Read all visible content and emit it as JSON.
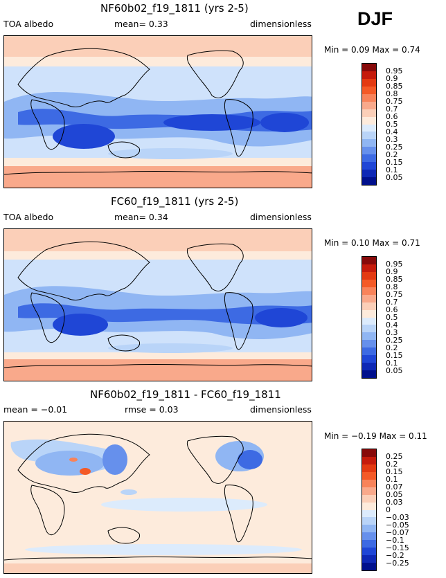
{
  "season": "DJF",
  "panels": [
    {
      "title": "NF60b02_f19_1811 (yrs 2-5)",
      "left_label": "TOA albedo",
      "mean_text": "mean=   0.33",
      "units": "dimensionless",
      "minmax": "Min =    0.09  Max =    0.74",
      "colorbar": {
        "labels": [
          "0.95",
          "0.9",
          "0.85",
          "0.8",
          "0.75",
          "0.7",
          "0.6",
          "0.5",
          "0.4",
          "0.3",
          "0.25",
          "0.2",
          "0.15",
          "0.1",
          "0.05"
        ],
        "colors": [
          "#870a0a",
          "#c51b0c",
          "#e33a12",
          "#f45a27",
          "#f8835a",
          "#f9a98b",
          "#fbcfb8",
          "#fdebdc",
          "#dcebfc",
          "#b9d4f8",
          "#90b6f3",
          "#6690ec",
          "#3d6ae3",
          "#1f46d6",
          "#0e28b5",
          "#00108c"
        ]
      }
    },
    {
      "title": "FC60_f19_1811 (yrs 2-5)",
      "left_label": "TOA albedo",
      "mean_text": "mean=   0.34",
      "units": "dimensionless",
      "minmax": "Min =    0.10  Max =    0.71",
      "colorbar": {
        "labels": [
          "0.95",
          "0.9",
          "0.85",
          "0.8",
          "0.75",
          "0.7",
          "0.6",
          "0.5",
          "0.4",
          "0.3",
          "0.25",
          "0.2",
          "0.15",
          "0.1",
          "0.05"
        ],
        "colors": [
          "#870a0a",
          "#c51b0c",
          "#e33a12",
          "#f45a27",
          "#f8835a",
          "#f9a98b",
          "#fbcfb8",
          "#fdebdc",
          "#dcebfc",
          "#b9d4f8",
          "#90b6f3",
          "#6690ec",
          "#3d6ae3",
          "#1f46d6",
          "#0e28b5",
          "#00108c"
        ]
      }
    },
    {
      "title": "NF60b02_f19_1811 - FC60_f19_1811",
      "left_label": "mean =   −0.01",
      "mean_text": "rmse =    0.03",
      "units": "dimensionless",
      "minmax": "Min =   −0.19  Max =    0.11",
      "colorbar": {
        "labels": [
          "0.25",
          "0.2",
          "0.15",
          "0.1",
          "0.07",
          "0.05",
          "0.03",
          "0",
          "−0.03",
          "−0.05",
          "−0.07",
          "−0.1",
          "−0.15",
          "−0.2",
          "−0.25"
        ],
        "colors": [
          "#870a0a",
          "#c51b0c",
          "#e33a12",
          "#f45a27",
          "#f8835a",
          "#f9a98b",
          "#fbcfb8",
          "#fdebdc",
          "#dcebfc",
          "#b9d4f8",
          "#90b6f3",
          "#6690ec",
          "#3d6ae3",
          "#1f46d6",
          "#0e28b5",
          "#00108c"
        ]
      }
    }
  ]
}
